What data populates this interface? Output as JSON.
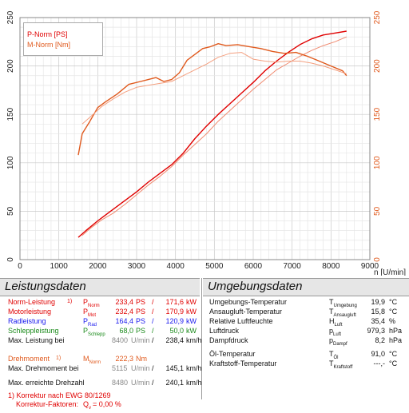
{
  "chart_data": {
    "type": "line",
    "xlabel": "n [U/min]",
    "xlim": [
      0,
      9000
    ],
    "x_ticks": [
      "0",
      "1000",
      "2000",
      "3000",
      "4000",
      "5000",
      "6000",
      "7000",
      "8000",
      "9000"
    ],
    "left_ylim": [
      0,
      250
    ],
    "left_ticks": [
      "0",
      "50",
      "100",
      "150",
      "200",
      "250"
    ],
    "right_ylim": [
      0,
      250
    ],
    "right_ticks": [
      "0",
      "50",
      "100",
      "150",
      "200",
      "250"
    ],
    "grid": true,
    "legend_placement": "top-left",
    "legend": [
      "P-Norm [PS]",
      "M-Norm [Nm]"
    ],
    "series": [
      {
        "name": "P-Norm [PS]",
        "color": "#e00000",
        "width": 1.4,
        "x": [
          1500,
          1700,
          2000,
          2300,
          2600,
          3000,
          3300,
          3600,
          3900,
          4200,
          4500,
          4800,
          5100,
          5400,
          5700,
          6000,
          6300,
          6600,
          6900,
          7200,
          7500,
          7800,
          8100,
          8400
        ],
        "y": [
          23,
          30,
          40,
          49,
          58,
          70,
          80,
          89,
          98,
          110,
          125,
          138,
          150,
          161,
          172,
          183,
          195,
          205,
          214,
          222,
          228,
          232,
          234,
          236
        ]
      },
      {
        "name": "",
        "color": "#f08a70",
        "width": 1,
        "x": [
          1600,
          1800,
          2100,
          2400,
          2700,
          3000,
          3300,
          3600,
          3900,
          4200,
          4500,
          4800,
          5100,
          5400,
          5700,
          6000,
          6300,
          6600,
          6900,
          7200,
          7500,
          7800,
          8100,
          8400
        ],
        "y": [
          25,
          32,
          41,
          48,
          57,
          67,
          77,
          86,
          96,
          108,
          119,
          130,
          143,
          154,
          165,
          176,
          186,
          196,
          203,
          210,
          216,
          221,
          225,
          230
        ]
      },
      {
        "name": "M-Norm [Nm]",
        "color": "#e05a1e",
        "width": 1.4,
        "x": [
          1500,
          1600,
          1800,
          2000,
          2200,
          2500,
          2800,
          3100,
          3300,
          3500,
          3700,
          3900,
          4100,
          4300,
          4500,
          4700,
          4900,
          5100,
          5300,
          5600,
          5900,
          6200,
          6500,
          6800,
          7100,
          7400,
          7700,
          8000,
          8300,
          8400
        ],
        "y": [
          108,
          130,
          143,
          157,
          163,
          171,
          181,
          184,
          186,
          188,
          184,
          186,
          193,
          206,
          212,
          218,
          220,
          223,
          221,
          222,
          220,
          218,
          215,
          213,
          214,
          210,
          205,
          200,
          195,
          190
        ]
      },
      {
        "name": "",
        "color": "#f4a080",
        "width": 1,
        "x": [
          1600,
          1800,
          2100,
          2400,
          2700,
          3000,
          3300,
          3600,
          3900,
          4200,
          4500,
          4800,
          5100,
          5400,
          5700,
          6000,
          6300,
          6600,
          6900,
          7200,
          7500,
          7800,
          8100,
          8400
        ],
        "y": [
          140,
          147,
          158,
          166,
          173,
          178,
          180,
          182,
          184,
          190,
          196,
          202,
          209,
          213,
          214,
          207,
          205,
          204,
          205,
          205,
          203,
          200,
          196,
          192
        ]
      }
    ]
  },
  "panels": {
    "left": {
      "title": "Leistungsdaten",
      "rows": [
        {
          "label": "Norm-Leistung",
          "mark": "1)",
          "sym": "P",
          "sub": "Norm",
          "v1": "233,4",
          "u1": "PS",
          "slash": "/",
          "v2": "171,6",
          "u2": "kW",
          "color": "r"
        },
        {
          "label": "Motorleistung",
          "mark": "",
          "sym": "P",
          "sub": "Mot",
          "v1": "232,4",
          "u1": "PS",
          "slash": "/",
          "v2": "170,9",
          "u2": "kW",
          "color": "r"
        },
        {
          "label": "Radleistung",
          "mark": "",
          "sym": "P",
          "sub": "Rad",
          "v1": "164,4",
          "u1": "PS",
          "slash": "/",
          "v2": "120,9",
          "u2": "kW",
          "color": "b"
        },
        {
          "label": "Schleppleistung",
          "mark": "",
          "sym": "P",
          "sub": "Schlepp",
          "v1": "68,0",
          "u1": "PS",
          "slash": "/",
          "v2": "50,0",
          "u2": "kW",
          "color": "g"
        }
      ],
      "max_leistung": {
        "label": "Max. Leistung bei",
        "rpm": "8400",
        "rpm_unit": "U/min",
        "slash": "/",
        "speed": "238,4",
        "speed_unit": "km/h"
      },
      "drehmoment": {
        "label": "Drehmoment",
        "mark": "1)",
        "sym": "M",
        "sub": "Norm",
        "value": "222,3",
        "unit": "Nm"
      },
      "max_drehmoment": {
        "label": "Max. Drehmoment bei",
        "rpm": "5115",
        "rpm_unit": "U/min",
        "slash": "/",
        "speed": "145,1",
        "speed_unit": "km/h"
      },
      "max_drehzahl": {
        "label": "Max. erreichte Drehzahl",
        "rpm": "8480",
        "rpm_unit": "U/min",
        "slash": "/",
        "speed": "240,1",
        "speed_unit": "km/h"
      },
      "footnote1": "1) Korrektur nach EWG 80/1269",
      "footnote2_label": "Korrektur-Faktoren:",
      "footnote2_sym": "Q",
      "footnote2_sub": "v",
      "footnote2_value": "=   0,00 %"
    },
    "right": {
      "title": "Umgebungsdaten",
      "rows": [
        {
          "label": "Umgebungs-Temperatur",
          "sym": "T",
          "sub": "Umgebung",
          "value": "19,9",
          "unit": "°C"
        },
        {
          "label": "Ansaugluft-Temperatur",
          "sym": "T",
          "sub": "Ansaugluft",
          "value": "15,8",
          "unit": "°C"
        },
        {
          "label": "Relative Luftfeuchte",
          "sym": "H",
          "sub": "Luft",
          "value": "35,4",
          "unit": "%"
        },
        {
          "label": "Luftdruck",
          "sym": "p",
          "sub": "Luft",
          "value": "979,3",
          "unit": "hPa"
        },
        {
          "label": "Dampfdruck",
          "sym": "p",
          "sub": "Dampf",
          "value": "8,2",
          "unit": "hPa"
        },
        {
          "label": "Öl-Temperatur",
          "sym": "T",
          "sub": "Öl",
          "value": "91,0",
          "unit": "°C"
        },
        {
          "label": "Kraftstoff-Temperatur",
          "sym": "T",
          "sub": "Kraftstoff",
          "value": "---,-",
          "unit": "°C"
        }
      ]
    }
  }
}
